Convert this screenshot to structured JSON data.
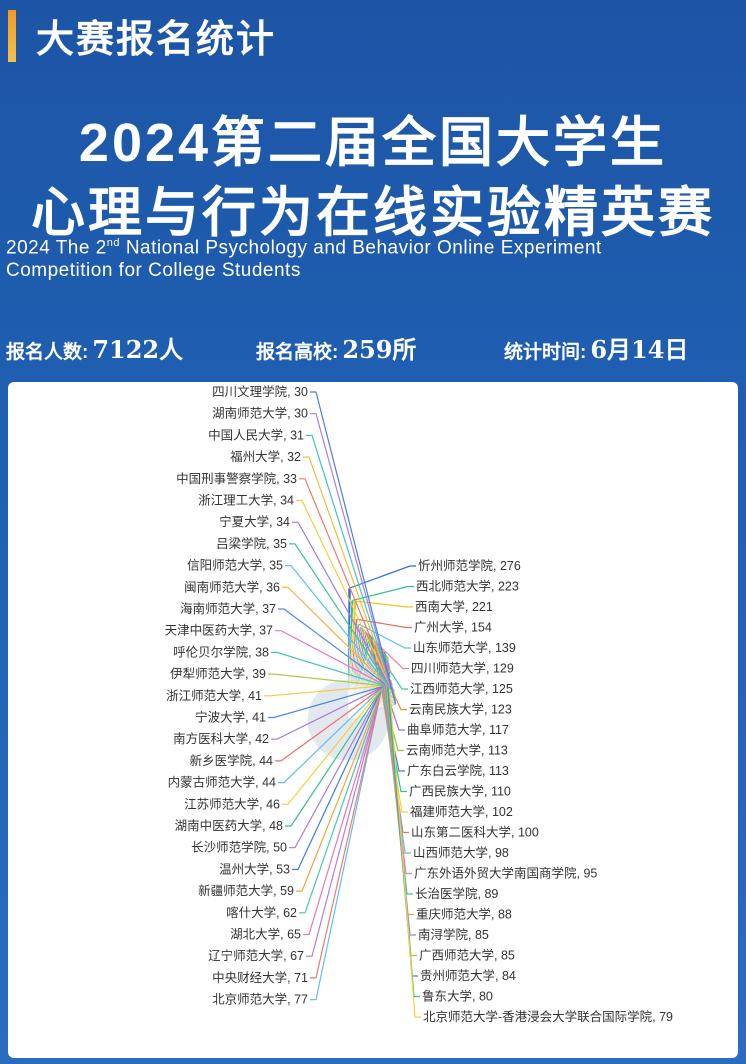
{
  "header": {
    "section_label": "大赛报名统计",
    "title_line1": "2024第二届全国大学生",
    "title_line2": "心理与行为在线实验精英赛",
    "en_line1_pre": "2024  The 2",
    "en_line1_sup": "nd",
    "en_line1_post": " National Psychology and Behavior Online Experiment",
    "en_line2": "Competition for College Students"
  },
  "stats": {
    "registrants_label": "报名人数:",
    "registrants_value": "7122人",
    "schools_label": "报名高校:",
    "schools_value": "259所",
    "time_label": "统计时间:",
    "time_value": "6月14日"
  },
  "chart_data": {
    "type": "pie",
    "total_slices": 259,
    "labeled_slices": [
      {
        "name": "忻州师范学院",
        "value": 276,
        "color": "#2f6fdb"
      },
      {
        "name": "西北师范大学",
        "value": 223,
        "color": "#2ec27e"
      },
      {
        "name": "西南大学",
        "value": 221,
        "color": "#f5c518"
      },
      {
        "name": "广州大学",
        "value": 154,
        "color": "#f06b4a"
      },
      {
        "name": "山东师范大学",
        "value": 139,
        "color": "#55c4e8"
      },
      {
        "name": "四川师范大学",
        "value": 129,
        "color": "#f17ca3"
      },
      {
        "name": "江西师范大学",
        "value": 125,
        "color": "#3cc9b0"
      },
      {
        "name": "云南民族大学",
        "value": 123,
        "color": "#f08a3c"
      },
      {
        "name": "曲阜师范大学",
        "value": 117,
        "color": "#9b6fe0"
      },
      {
        "name": "云南师范大学",
        "value": 113,
        "color": "#8cc63f"
      },
      {
        "name": "广东白云学院",
        "value": 113,
        "color": "#3f7fe0"
      },
      {
        "name": "广西民族大学",
        "value": 110,
        "color": "#27c39a"
      },
      {
        "name": "福建师范大学",
        "value": 102,
        "color": "#f6d24a"
      },
      {
        "name": "山东第二医科大学",
        "value": 100,
        "color": "#ef6f6f"
      },
      {
        "name": "山西师范大学",
        "value": 98,
        "color": "#5bbde6"
      },
      {
        "name": "广东外语外贸大学南国商学院",
        "value": 95,
        "color": "#ea79b8"
      },
      {
        "name": "长治医学院",
        "value": 89,
        "color": "#41c6a8"
      },
      {
        "name": "重庆师范大学",
        "value": 88,
        "color": "#f2983d"
      },
      {
        "name": "南浔学院",
        "value": 85,
        "color": "#a57de8"
      },
      {
        "name": "广西师范大学",
        "value": 85,
        "color": "#9ccc45"
      },
      {
        "name": "贵州师范大学",
        "value": 84,
        "color": "#4a85e2"
      },
      {
        "name": "鲁东大学",
        "value": 80,
        "color": "#2fc48a"
      },
      {
        "name": "北京师范大学-香港浸会大学联合国际学院",
        "value": 79,
        "color": "#f7cf3a"
      },
      {
        "name": "北京师范大学",
        "value": 77,
        "color": "#5dc2ee"
      },
      {
        "name": "中央财经大学",
        "value": 71,
        "color": "#f07a6a"
      },
      {
        "name": "辽宁师范大学",
        "value": 67,
        "color": "#b07be6"
      },
      {
        "name": "湖北大学",
        "value": 65,
        "color": "#e877b0"
      },
      {
        "name": "喀什大学",
        "value": 62,
        "color": "#46c7b4"
      },
      {
        "name": "新疆师范大学",
        "value": 59,
        "color": "#f4a442"
      },
      {
        "name": "温州大学",
        "value": 53,
        "color": "#3e7ede"
      },
      {
        "name": "长沙师范学院",
        "value": 50,
        "color": "#a67ae4"
      },
      {
        "name": "湖南中医药大学",
        "value": 48,
        "color": "#35c18c"
      },
      {
        "name": "江苏师范大学",
        "value": 46,
        "color": "#f6cf3e"
      },
      {
        "name": "内蒙古师范大学",
        "value": 44,
        "color": "#59c0ec"
      },
      {
        "name": "新乡医学院",
        "value": 44,
        "color": "#ef7062"
      },
      {
        "name": "南方医科大学",
        "value": 42,
        "color": "#a27ae2"
      },
      {
        "name": "宁波大学",
        "value": 41,
        "color": "#4b86e3"
      },
      {
        "name": "浙江师范大学",
        "value": 41,
        "color": "#f4c93e"
      },
      {
        "name": "伊犁师范大学",
        "value": 39,
        "color": "#9ecf4a"
      },
      {
        "name": "呼伦贝尔学院",
        "value": 38,
        "color": "#44c6b0"
      },
      {
        "name": "天津中医药大学",
        "value": 37,
        "color": "#e878c0"
      },
      {
        "name": "海南师范大学",
        "value": 37,
        "color": "#4f8ae4"
      },
      {
        "name": "闽南师范大学",
        "value": 36,
        "color": "#f4b142"
      },
      {
        "name": "信阳师范大学",
        "value": 35,
        "color": "#5ac2e8"
      },
      {
        "name": "吕梁学院",
        "value": 35,
        "color": "#3cc49a"
      },
      {
        "name": "宁夏大学",
        "value": 34,
        "color": "#a27ae2"
      },
      {
        "name": "浙江理工大学",
        "value": 34,
        "color": "#f5d046"
      },
      {
        "name": "中国刑事警察学院",
        "value": 33,
        "color": "#f0786a"
      },
      {
        "name": "福州大学",
        "value": 32,
        "color": "#e8c23a"
      },
      {
        "name": "中国人民大学",
        "value": 31,
        "color": "#48c0c8"
      },
      {
        "name": "湖南师范大学",
        "value": 30,
        "color": "#a47fe6"
      },
      {
        "name": "四川文理学院",
        "value": 30,
        "color": "#4a7fd8"
      }
    ]
  }
}
